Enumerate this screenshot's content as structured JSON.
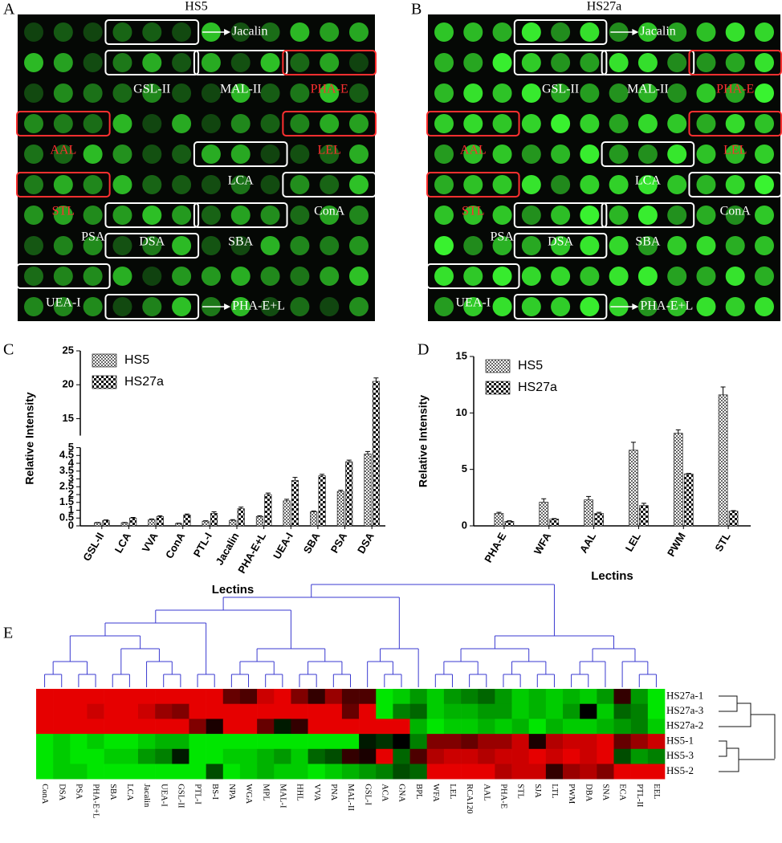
{
  "panels": [
    {
      "letter": "A",
      "title": "HS5",
      "labels": [
        {
          "text": "Jacalin",
          "color": "#ffffff"
        },
        {
          "text": "GSL-II",
          "color": "#ffffff"
        },
        {
          "text": "MAL-II",
          "color": "#ffffff"
        },
        {
          "text": "PHA-E",
          "color": "#ff3030"
        },
        {
          "text": "AAL",
          "color": "#ff3030"
        },
        {
          "text": "LEL",
          "color": "#ff3030"
        },
        {
          "text": "LCA",
          "color": "#ffffff"
        },
        {
          "text": "STL",
          "color": "#ff3030"
        },
        {
          "text": "ConA",
          "color": "#ffffff"
        },
        {
          "text": "DSA",
          "color": "#ffffff"
        },
        {
          "text": "SBA",
          "color": "#ffffff"
        },
        {
          "text": "PSA",
          "color": "#ffffff"
        },
        {
          "text": "UEA-I",
          "color": "#ffffff"
        },
        {
          "text": "PHA-E+L",
          "color": "#ffffff"
        }
      ]
    },
    {
      "letter": "B",
      "title": "HS27a",
      "labels": [
        {
          "text": "Jacalin",
          "color": "#ffffff"
        },
        {
          "text": "GSL-II",
          "color": "#ffffff"
        },
        {
          "text": "MAL-II",
          "color": "#ffffff"
        },
        {
          "text": "PHA-E",
          "color": "#ff3030"
        },
        {
          "text": "AAL",
          "color": "#ff3030"
        },
        {
          "text": "LEL",
          "color": "#ff3030"
        },
        {
          "text": "LCA",
          "color": "#ffffff"
        },
        {
          "text": "STL",
          "color": "#ff3030"
        },
        {
          "text": "ConA",
          "color": "#ffffff"
        },
        {
          "text": "DSA",
          "color": "#ffffff"
        },
        {
          "text": "SBA",
          "color": "#ffffff"
        },
        {
          "text": "PSA",
          "color": "#ffffff"
        },
        {
          "text": "UEA-I",
          "color": "#ffffff"
        },
        {
          "text": "PHA-E+L",
          "color": "#ffffff"
        }
      ]
    }
  ],
  "chart_data": [
    {
      "type": "bar",
      "letter": "C",
      "xlabel": "Lectins",
      "ylabel": "Relative Intensity",
      "categories": [
        "GSL-II",
        "LCA",
        "VVA",
        "ConA",
        "PTL-I",
        "Jacalin",
        "PHA-E+L",
        "UEA-I",
        "SBA",
        "PSA",
        "DSA"
      ],
      "series": [
        {
          "name": "HS5",
          "color": "#666666",
          "values": [
            0.2,
            0.2,
            0.4,
            0.15,
            0.3,
            0.35,
            0.6,
            1.6,
            0.9,
            2.2,
            4.6
          ],
          "errors": [
            0.02,
            0.02,
            0.04,
            0.02,
            0.03,
            0.05,
            0.05,
            0.1,
            0.05,
            0.08,
            0.15
          ]
        },
        {
          "name": "HS27a",
          "color": "#111111",
          "values": [
            0.35,
            0.5,
            0.6,
            0.7,
            0.8,
            1.1,
            2.0,
            2.9,
            3.2,
            4.1,
            20.5
          ],
          "errors": [
            0.03,
            0.04,
            0.05,
            0.06,
            0.1,
            0.1,
            0.1,
            0.2,
            0.1,
            0.1,
            0.5
          ]
        }
      ],
      "ylim": [
        0,
        25
      ],
      "yticks": [
        0,
        0.5,
        1,
        1.5,
        2,
        2.5,
        3,
        3.5,
        4,
        4.5,
        5,
        15,
        20,
        25
      ],
      "ybreak": [
        5,
        12.5
      ],
      "legend": "upper-left"
    },
    {
      "type": "bar",
      "letter": "D",
      "xlabel": "Lectins",
      "ylabel": "Relative Intensity",
      "categories": [
        "PHA-E",
        "WFA",
        "AAL",
        "LEL",
        "PWM",
        "STL"
      ],
      "series": [
        {
          "name": "HS5",
          "color": "#666666",
          "values": [
            1.1,
            2.1,
            2.3,
            6.7,
            8.2,
            11.6
          ],
          "errors": [
            0.1,
            0.3,
            0.3,
            0.7,
            0.3,
            0.7
          ]
        },
        {
          "name": "HS27a",
          "color": "#111111",
          "values": [
            0.4,
            0.6,
            1.1,
            1.8,
            4.6,
            1.3
          ],
          "errors": [
            0.05,
            0.05,
            0.1,
            0.2,
            0.05,
            0.05
          ]
        }
      ],
      "ylim": [
        0,
        15
      ],
      "yticks": [
        0,
        5,
        10,
        15
      ],
      "legend": "upper-left"
    },
    {
      "type": "heatmap",
      "letter": "E",
      "categories": [
        "ConA",
        "DSA",
        "PSA",
        "PHA-E+L",
        "SBA",
        "LCA",
        "Jacalin",
        "UEA-I",
        "GSL-II",
        "PTL-I",
        "BS-I",
        "NPA",
        "WGA",
        "MPL",
        "MAL-I",
        "HHL",
        "VVA",
        "PNA",
        "MAL-II",
        "GSL-I",
        "ACA",
        "GNA",
        "BPL",
        "WFA",
        "LEL",
        "RCA120",
        "AAL",
        "PHA-E",
        "STL",
        "SJA",
        "LTL",
        "PWM",
        "DBA",
        "SNA",
        "ECA",
        "PTL-II",
        "EEL"
      ],
      "rows": [
        "HS27a-1",
        "HS27a-3",
        "HS27a-2",
        "HS5-1",
        "HS5-3",
        "HS5-2"
      ],
      "values": [
        [
          0.9,
          0.9,
          0.9,
          0.9,
          0.9,
          0.9,
          0.9,
          0.9,
          0.9,
          0.9,
          0.9,
          0.4,
          0.3,
          0.8,
          0.9,
          0.5,
          0.2,
          0.6,
          0.3,
          0.3,
          -0.9,
          -0.8,
          -0.6,
          -0.8,
          -0.6,
          -0.5,
          -0.4,
          -0.6,
          -0.8,
          -0.7,
          -0.8,
          -0.7,
          -0.8,
          -0.6,
          0.2,
          -0.6,
          -0.9
        ],
        [
          0.9,
          0.9,
          0.9,
          0.8,
          0.9,
          0.9,
          0.8,
          0.6,
          0.5,
          0.9,
          0.9,
          0.9,
          0.9,
          0.9,
          0.9,
          0.9,
          0.9,
          0.9,
          0.4,
          0.9,
          -0.9,
          -0.5,
          -0.4,
          -0.8,
          -0.7,
          -0.7,
          -0.6,
          -0.6,
          -0.8,
          -0.7,
          -0.8,
          -0.6,
          0.0,
          -0.8,
          -0.4,
          -0.5,
          -0.9
        ],
        [
          0.9,
          0.9,
          0.9,
          0.9,
          0.9,
          0.9,
          0.9,
          0.9,
          0.9,
          0.5,
          0.1,
          0.9,
          0.9,
          0.4,
          -0.1,
          0.2,
          0.9,
          0.9,
          0.9,
          0.9,
          0.9,
          0.9,
          -0.7,
          -0.9,
          -0.8,
          -0.8,
          -0.7,
          -0.8,
          -0.7,
          -0.9,
          -0.7,
          -0.8,
          -0.8,
          -0.7,
          -0.6,
          -0.5,
          -0.8
        ],
        [
          -0.9,
          -0.8,
          -0.9,
          -0.8,
          -0.9,
          -0.9,
          -0.8,
          -0.7,
          -0.7,
          -0.9,
          -0.9,
          -0.9,
          -0.9,
          -0.9,
          -0.9,
          -0.9,
          -0.9,
          -0.9,
          -0.9,
          -0.1,
          -0.2,
          0.0,
          -0.5,
          0.5,
          0.5,
          0.4,
          0.6,
          0.6,
          0.8,
          0.1,
          0.7,
          0.8,
          0.8,
          0.9,
          0.4,
          0.6,
          0.8
        ],
        [
          -0.9,
          -0.8,
          -0.9,
          -0.9,
          -0.8,
          -0.8,
          -0.6,
          -0.5,
          -0.1,
          -0.9,
          -0.9,
          -0.8,
          -0.8,
          -0.7,
          -0.6,
          -0.8,
          -0.4,
          -0.3,
          0.2,
          0.1,
          0.9,
          -0.4,
          0.3,
          0.7,
          0.8,
          0.8,
          0.7,
          0.8,
          0.8,
          0.9,
          0.8,
          0.9,
          0.8,
          0.9,
          -0.3,
          -0.6,
          -0.5
        ],
        [
          -0.9,
          -0.8,
          -0.8,
          -0.9,
          -0.9,
          -0.9,
          -0.9,
          -0.9,
          -0.9,
          -0.9,
          -0.3,
          -0.9,
          -0.8,
          -0.7,
          -0.8,
          -0.8,
          -0.9,
          -0.8,
          -0.7,
          -0.6,
          -0.5,
          -0.3,
          -0.4,
          0.9,
          0.9,
          0.9,
          0.9,
          0.7,
          0.8,
          0.8,
          0.2,
          0.6,
          0.7,
          0.5,
          0.9,
          0.9,
          0.9
        ]
      ],
      "colors": [
        "#00ff00",
        "#000000",
        "#ff0000"
      ]
    }
  ]
}
